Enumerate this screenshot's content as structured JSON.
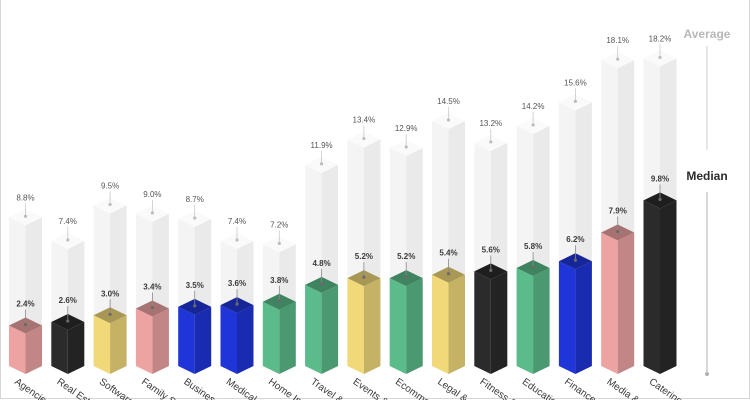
{
  "chart_data": {
    "type": "bar",
    "categories": [
      "Agencies",
      "Real Esta",
      "Software",
      "Family S",
      "Business S",
      "Medical S",
      "Home Im",
      "Travel &",
      "Events & I",
      "Ecomme",
      "Legal &",
      "Fitness &",
      "Educatio",
      "Finance &",
      "Media & E",
      "Catering S"
    ],
    "series": [
      {
        "name": "Average",
        "values": [
          8.8,
          7.4,
          9.5,
          9.0,
          8.7,
          7.4,
          7.2,
          11.9,
          13.4,
          12.9,
          14.5,
          13.2,
          14.2,
          15.6,
          18.1,
          18.2
        ]
      },
      {
        "name": "Median",
        "values": [
          2.4,
          2.6,
          3.0,
          3.4,
          3.5,
          3.6,
          3.8,
          4.8,
          5.2,
          5.2,
          5.4,
          5.6,
          5.8,
          6.2,
          7.9,
          9.8
        ]
      }
    ],
    "average_labels": [
      "8.8%",
      "7.4%",
      "9.5%",
      "9.0%",
      "8.7%",
      "7.4%",
      "7.2%",
      "11.9%",
      "13.4%",
      "12.9%",
      "14.5%",
      "13.2%",
      "14.2%",
      "15.6%",
      "18.1%",
      "18.2%"
    ],
    "median_labels": [
      "2.4%",
      "2.6%",
      "3.0%",
      "3.4%",
      "3.5%",
      "3.6%",
      "3.8%",
      "4.8%",
      "5.2%",
      "5.2%",
      "5.4%",
      "5.6%",
      "5.8%",
      "6.2%",
      "7.9%",
      "9.8%"
    ],
    "median_colors": [
      "#eea3a3",
      "#2b2b2b",
      "#f1d97a",
      "#eea3a3",
      "#1f35d8",
      "#1f35d8",
      "#5cbb8a",
      "#5cbb8a",
      "#f1d97a",
      "#5cbb8a",
      "#f1d97a",
      "#2b2b2b",
      "#5cbb8a",
      "#1f35d8",
      "#eea3a3",
      "#2b2b2b"
    ],
    "average_color": "#f4f4f4",
    "ylim": [
      0,
      20
    ],
    "grid": false,
    "legend": "right"
  },
  "legend_labels": {
    "average": "Average",
    "median": "Median"
  }
}
